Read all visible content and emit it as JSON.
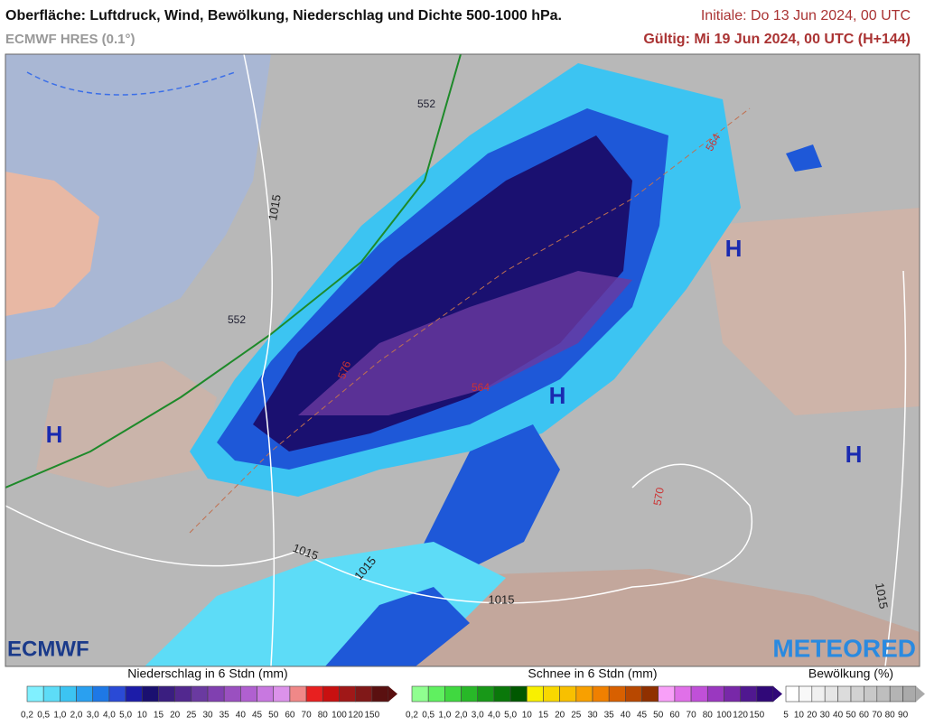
{
  "header": {
    "title": "Oberfläche: Luftdruck, Wind, Bewölkung, Niederschlag und Dichte 500-1000 hPa.",
    "model": "ECMWF HRES (0.1°)",
    "initial": "Initiale: Do 13 Jun 2024, 00 UTC",
    "valid": "Gültig: Mi 19 Jun 2024, 00 UTC (H+144)"
  },
  "map": {
    "labels": [
      "1015",
      "552",
      "552",
      "564",
      "564",
      "576",
      "570",
      "1015",
      "1015",
      "1015",
      "1015",
      "H",
      "H",
      "H",
      "H"
    ]
  },
  "logos": {
    "left": "ECMWF",
    "right": "METEORED"
  },
  "legends": [
    {
      "title": "Niederschlag in 6 Stdn (mm)",
      "labels": [
        "0,2",
        "0,5",
        "1,0",
        "2,0",
        "3,0",
        "4,0",
        "5,0",
        "10",
        "15",
        "20",
        "25",
        "30",
        "35",
        "40",
        "45",
        "50",
        "60",
        "70",
        "80",
        "100",
        "120",
        "150"
      ],
      "colors": [
        "#80f0ff",
        "#5ddcf7",
        "#3cc4f2",
        "#2aa0f0",
        "#1e78e6",
        "#2a4ad6",
        "#1c1ca8",
        "#1a1070",
        "#3a1e80",
        "#52288f",
        "#6a3aa0",
        "#8040b0",
        "#9a50c0",
        "#b060d0",
        "#c878e0",
        "#dc92ea",
        "#f08888",
        "#e82020",
        "#c81010",
        "#a01818",
        "#801818",
        "#5a1010"
      ]
    },
    {
      "title": "Schnee in 6 Stdn (mm)",
      "labels": [
        "0,2",
        "0,5",
        "1,0",
        "2,0",
        "3,0",
        "4,0",
        "5,0",
        "10",
        "15",
        "20",
        "25",
        "30",
        "35",
        "40",
        "45",
        "50",
        "60",
        "70",
        "80",
        "100",
        "120",
        "150"
      ],
      "colors": [
        "#90ff90",
        "#60f060",
        "#40d840",
        "#28b828",
        "#189818",
        "#0a780a",
        "#005800",
        "#f8f000",
        "#f8d800",
        "#f8c000",
        "#f8a000",
        "#f08000",
        "#d86000",
        "#b84800",
        "#903000",
        "#f8a0f8",
        "#e070e8",
        "#c050d8",
        "#9a38c0",
        "#7828a8",
        "#501890",
        "#300878"
      ]
    },
    {
      "title": "Bewölkung (%)",
      "labels": [
        "5",
        "10",
        "20",
        "30",
        "40",
        "50",
        "60",
        "70",
        "80",
        "90"
      ],
      "colors": [
        "#ffffff",
        "#f8f8f8",
        "#f0f0f0",
        "#e6e6e6",
        "#dcdcdc",
        "#d2d2d2",
        "#c8c8c8",
        "#bebebe",
        "#b4b4b4",
        "#aaaaaa"
      ]
    }
  ]
}
